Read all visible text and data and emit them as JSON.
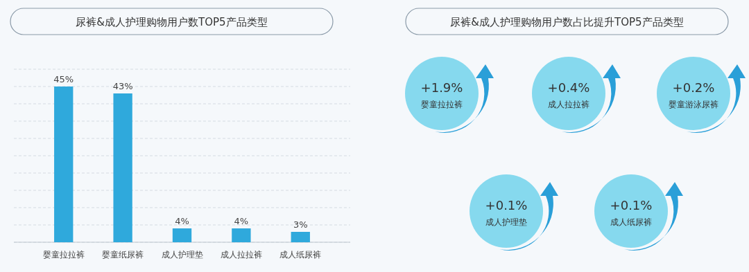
{
  "chart_data": [
    {
      "type": "bar",
      "title": "尿裤&成人护理购物用户数TOP5产品类型",
      "categories": [
        "婴童拉拉裤",
        "婴童纸尿裤",
        "成人护理垫",
        "成人拉拉裤",
        "成人纸尿裤"
      ],
      "values": [
        45,
        43,
        4,
        4,
        3
      ],
      "value_labels": [
        "45%",
        "43%",
        "4%",
        "4%",
        "3%"
      ],
      "color": "#2fa9dc",
      "ylim": [
        0,
        50
      ],
      "yticks": [
        {
          "value": 0,
          "label": null
        },
        {
          "value": 5,
          "label": null
        },
        {
          "value": 10,
          "label": null
        },
        {
          "value": 15,
          "label": null
        },
        {
          "value": 20,
          "label": null
        },
        {
          "value": 25,
          "label": null
        },
        {
          "value": 30,
          "label": null
        },
        {
          "value": 35,
          "label": null
        },
        {
          "value": 40,
          "label": null
        },
        {
          "value": 45,
          "label": null
        },
        {
          "value": 50,
          "label": null
        }
      ],
      "grid": "y",
      "tick_labels": "x"
    },
    {
      "type": "other",
      "title": "尿裤&成人护理购物用户数占比提升TOP5产品类型",
      "categories": [
        "婴童拉拉裤",
        "成人拉拉裤",
        "婴童游泳尿裤",
        "成人护理垫",
        "成人纸尿裤"
      ],
      "value_labels": [
        "+1.9%",
        "+0.4%",
        "+0.2%",
        "+0.1%",
        "+0.1%"
      ],
      "color": "#86d9ee"
    }
  ]
}
